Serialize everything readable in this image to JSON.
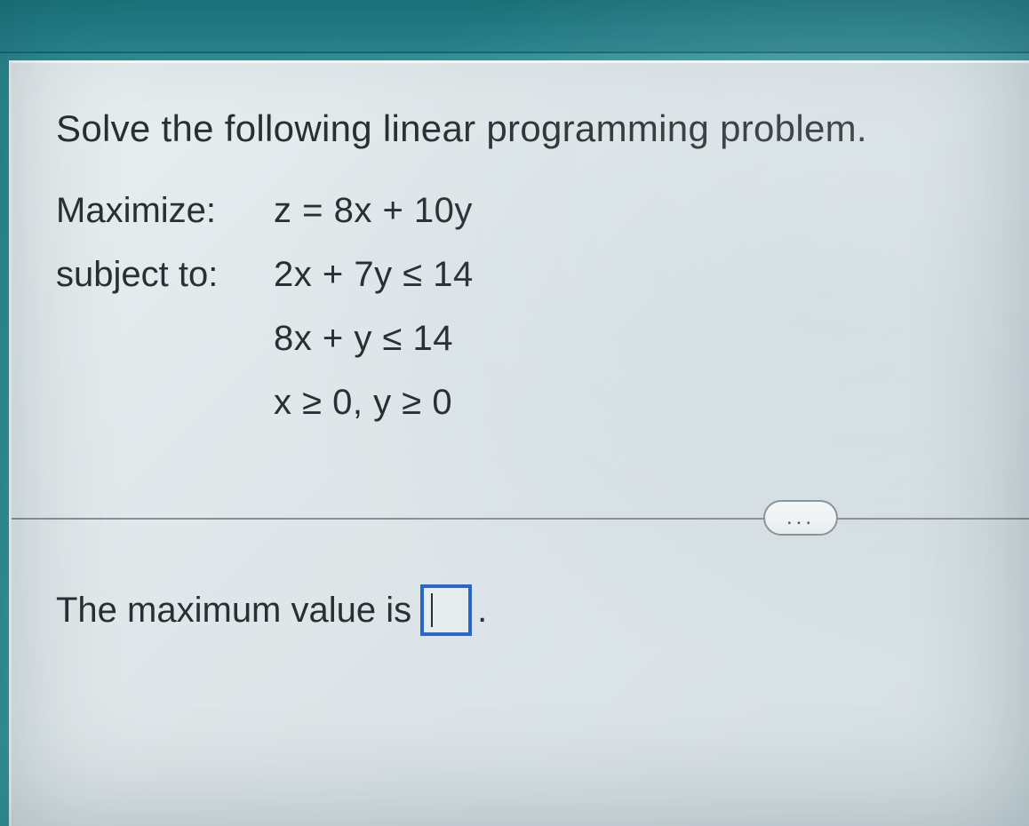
{
  "colors": {
    "header_bg_start": "#1e7a82",
    "header_bg_end": "#2a8590",
    "card_bg_start": "#e8eef0",
    "card_bg_end": "#d5dfe3",
    "text_color": "#2a2f33",
    "divider_color": "#8a9298",
    "input_border": "#2968c8",
    "pill_border": "#8a9298",
    "pill_bg": "#f5f8f9"
  },
  "typography": {
    "question_fontsize": 42,
    "body_fontsize": 40,
    "font_family": "Arial"
  },
  "question": {
    "prompt": "Solve the following linear programming problem."
  },
  "problem": {
    "maximize_label": "Maximize:",
    "subject_label": "subject to:",
    "objective": "z = 8x + 10y",
    "constraint1": "2x + 7y ≤ 14",
    "constraint2": "8x + y ≤ 14",
    "constraint3": "x ≥ 0, y ≥ 0"
  },
  "divider": {
    "ellipsis": "..."
  },
  "answer": {
    "prefix": "The maximum value is",
    "value": "",
    "suffix": "."
  }
}
